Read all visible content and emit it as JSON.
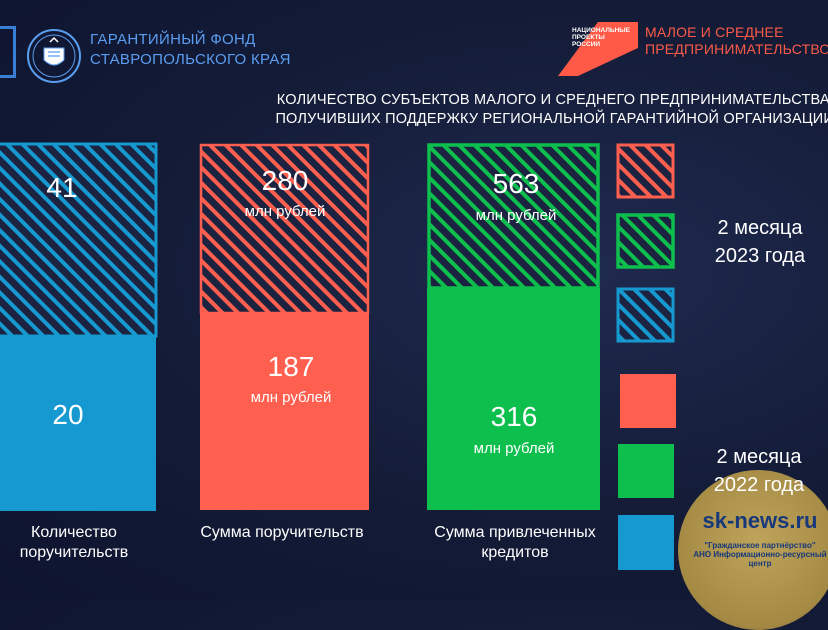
{
  "header": {
    "fund_name": "ГАРАНТИЙНЫЙ ФОНД\nСТАВРОПОЛЬСКОГО КРАЯ",
    "np_logo_text": "НАЦИОНАЛЬНЫЕ\nПРОЕКТЫ\nРОССИИ",
    "msp_title": "МАЛОЕ И СРЕДНЕЕ\nПРЕДПРИНИМАТЕЛЬСТВО"
  },
  "colors": {
    "red": "#ff5f4e",
    "green": "#0dbf4d",
    "blue": "#1599d0",
    "accent_blue_text": "#5b9df0",
    "hatch_dark": "#1c2340"
  },
  "chart_data": {
    "type": "bar",
    "title": "КОЛИЧЕСТВО СУБЪЕКТОВ МАЛОГО И СРЕДНЕГО ПРЕДПРИНИМАТЕЛЬСТВА,\nПОЛУЧИВШИХ ПОДДЕРЖКУ РЕГИОНАЛЬНОЙ ГАРАНТИЙНОЙ ОРГАНИЗАЦИИ",
    "categories": [
      "Количество\nпоручительств",
      "Сумма поручительств",
      "Сумма привлеченных\nкредитов"
    ],
    "series": [
      {
        "name": "2 месяца\n2023 года",
        "values": [
          41,
          280,
          563
        ],
        "value_labels": [
          "41",
          "280",
          "563"
        ],
        "unit_labels": [
          "",
          "млн рублей",
          "млн рублей"
        ]
      },
      {
        "name": "2 месяца\n2022 года",
        "values": [
          20,
          187,
          316
        ],
        "value_labels": [
          "20",
          "187",
          "316"
        ],
        "unit_labels": [
          "",
          "млн рублей",
          "млн рублей"
        ]
      }
    ],
    "bar_colors": [
      "blue",
      "red",
      "green"
    ],
    "style_2023": "hatched",
    "style_2022": "solid",
    "legend": {
      "label_2023": "2 месяца\n2023 года",
      "label_2022": "2 месяца\n2022 года"
    }
  },
  "watermark": {
    "site": "sk-news.ru",
    "sub": "\"Гражданское партнёрство\"\nАНО Информационно-ресурсный центр"
  }
}
